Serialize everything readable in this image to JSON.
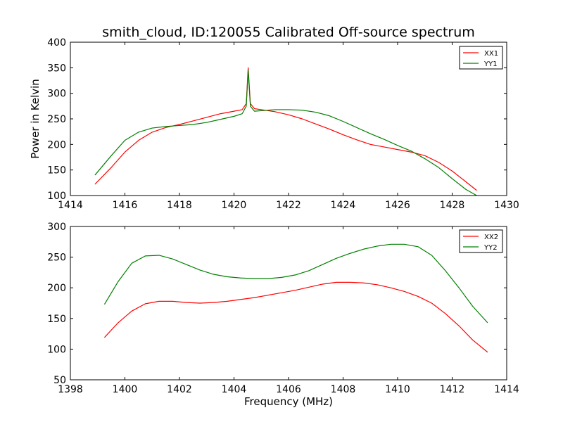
{
  "title": "smith_cloud, ID:120055 Calibrated Off-source spectrum",
  "colors": {
    "red": "#ff0000",
    "green": "#008000"
  },
  "chart_data": [
    {
      "type": "line",
      "xlabel": "",
      "ylabel": "Power in Kelvin",
      "xlim": [
        1414,
        1430
      ],
      "ylim": [
        100,
        400
      ],
      "xticks": [
        1414,
        1416,
        1418,
        1420,
        1422,
        1424,
        1426,
        1428,
        1430
      ],
      "yticks": [
        100,
        150,
        200,
        250,
        300,
        350,
        400
      ],
      "legend": "top-right",
      "grid": false,
      "series": [
        {
          "name": "XX1",
          "color": "#ff0000",
          "x": [
            1414.9,
            1415.5,
            1416,
            1416.5,
            1417,
            1417.5,
            1418,
            1418.5,
            1419,
            1419.5,
            1420,
            1420.3,
            1420.45,
            1420.52,
            1420.6,
            1420.75,
            1421,
            1421.5,
            1422,
            1422.5,
            1423,
            1423.5,
            1424,
            1424.5,
            1425,
            1425.5,
            1426,
            1426.5,
            1427,
            1427.5,
            1428,
            1428.5,
            1428.9
          ],
          "y": [
            122,
            155,
            185,
            208,
            224,
            233,
            239,
            246,
            253,
            260,
            265,
            268,
            280,
            350,
            280,
            270,
            268,
            264,
            258,
            250,
            240,
            230,
            219,
            209,
            200,
            195,
            190,
            185,
            178,
            165,
            148,
            127,
            110
          ]
        },
        {
          "name": "YY1",
          "color": "#008000",
          "x": [
            1414.9,
            1415.5,
            1416,
            1416.5,
            1417,
            1417.5,
            1418,
            1418.5,
            1419,
            1419.5,
            1420,
            1420.3,
            1420.45,
            1420.52,
            1420.6,
            1420.75,
            1421,
            1421.5,
            1422,
            1422.5,
            1423,
            1423.5,
            1424,
            1424.5,
            1425,
            1425.5,
            1426,
            1426.5,
            1427,
            1427.5,
            1428,
            1428.5,
            1428.9
          ],
          "y": [
            140,
            178,
            208,
            224,
            232,
            235,
            237,
            239,
            243,
            249,
            255,
            260,
            275,
            345,
            275,
            265,
            266,
            268,
            268,
            267,
            263,
            256,
            245,
            233,
            221,
            210,
            198,
            187,
            172,
            155,
            133,
            112,
            100
          ]
        }
      ]
    },
    {
      "type": "line",
      "xlabel": "Frequency (MHz)",
      "ylabel": "",
      "xlim": [
        1398,
        1414
      ],
      "ylim": [
        50,
        300
      ],
      "xticks": [
        1398,
        1400,
        1402,
        1404,
        1406,
        1408,
        1410,
        1412,
        1414
      ],
      "yticks": [
        50,
        100,
        150,
        200,
        250,
        300
      ],
      "legend": "top-right",
      "grid": false,
      "series": [
        {
          "name": "XX2",
          "color": "#ff0000",
          "x": [
            1399.25,
            1399.75,
            1400.25,
            1400.75,
            1401.25,
            1401.75,
            1402.25,
            1402.75,
            1403.25,
            1403.75,
            1404.25,
            1404.75,
            1405.25,
            1405.75,
            1406.25,
            1406.75,
            1407.25,
            1407.75,
            1408.25,
            1408.75,
            1409.25,
            1409.75,
            1410.25,
            1410.75,
            1411.25,
            1411.75,
            1412.25,
            1412.75,
            1413.3
          ],
          "y": [
            119,
            143,
            162,
            174,
            178,
            178,
            176,
            175,
            176,
            178,
            181,
            184,
            188,
            192,
            196,
            201,
            206,
            209,
            209,
            208,
            205,
            200,
            194,
            186,
            175,
            158,
            138,
            115,
            95
          ]
        },
        {
          "name": "YY2",
          "color": "#008000",
          "x": [
            1399.25,
            1399.75,
            1400.25,
            1400.75,
            1401.25,
            1401.75,
            1402.25,
            1402.75,
            1403.25,
            1403.75,
            1404.25,
            1404.75,
            1405.25,
            1405.75,
            1406.25,
            1406.75,
            1407.25,
            1407.75,
            1408.25,
            1408.75,
            1409.25,
            1409.75,
            1410.25,
            1410.75,
            1411.25,
            1411.75,
            1412.25,
            1412.75,
            1413.3
          ],
          "y": [
            173,
            210,
            240,
            252,
            253,
            247,
            238,
            229,
            222,
            218,
            216,
            215,
            215,
            217,
            221,
            228,
            238,
            248,
            256,
            263,
            268,
            271,
            271,
            267,
            253,
            228,
            200,
            170,
            143
          ]
        }
      ]
    }
  ]
}
